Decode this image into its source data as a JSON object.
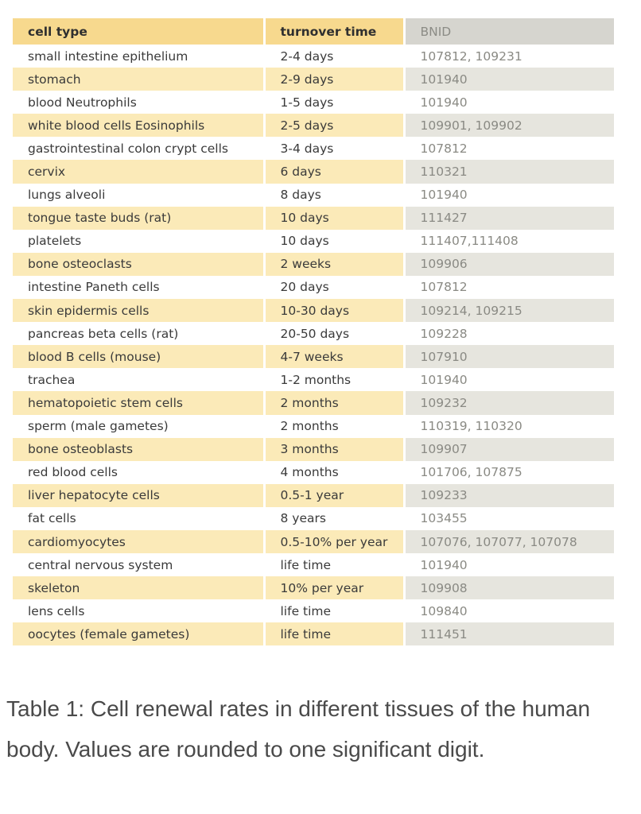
{
  "table": {
    "headers": [
      "cell type",
      "turnover time",
      "BNID"
    ],
    "rows": [
      [
        "small intestine epithelium",
        "2-4 days",
        "107812, 109231"
      ],
      [
        "stomach",
        "2-9 days",
        "101940"
      ],
      [
        "blood Neutrophils",
        "1-5 days",
        "101940"
      ],
      [
        "white blood cells Eosinophils",
        "2-5 days",
        "109901, 109902"
      ],
      [
        "gastrointestinal colon crypt cells",
        "3-4 days",
        "107812"
      ],
      [
        "cervix",
        "6 days",
        "110321"
      ],
      [
        "lungs alveoli",
        "8 days",
        "101940"
      ],
      [
        "tongue taste buds (rat)",
        "10 days",
        "111427"
      ],
      [
        "platelets",
        "10 days",
        "111407,111408"
      ],
      [
        "bone osteoclasts",
        "2 weeks",
        "109906"
      ],
      [
        "intestine Paneth cells",
        "20 days",
        "107812"
      ],
      [
        "skin epidermis cells",
        "10-30 days",
        "109214, 109215"
      ],
      [
        "pancreas beta cells (rat)",
        "20-50 days",
        "109228"
      ],
      [
        "blood B cells (mouse)",
        "4-7 weeks",
        "107910"
      ],
      [
        "trachea",
        "1-2 months",
        "101940"
      ],
      [
        "hematopoietic stem cells",
        "2 months",
        "109232"
      ],
      [
        "sperm (male gametes)",
        "2 months",
        "110319, 110320"
      ],
      [
        "bone osteoblasts",
        "3 months",
        "109907"
      ],
      [
        "red blood cells",
        "4 months",
        "101706, 107875"
      ],
      [
        "liver hepatocyte cells",
        "0.5-1 year",
        "109233"
      ],
      [
        "fat cells",
        "8 years",
        "103455"
      ],
      [
        "cardiomyocytes",
        "0.5-10% per year",
        "107076, 107077, 107078"
      ],
      [
        "central nervous system",
        "life time",
        "101940"
      ],
      [
        "skeleton",
        "10% per year",
        "109908"
      ],
      [
        "lens cells",
        "life time",
        "109840"
      ],
      [
        "oocytes (female gametes)",
        "life time",
        "111451"
      ]
    ]
  },
  "caption": "Table 1: Cell renewal rates in different tissues of the human body. Values are rounded to one significant digit."
}
